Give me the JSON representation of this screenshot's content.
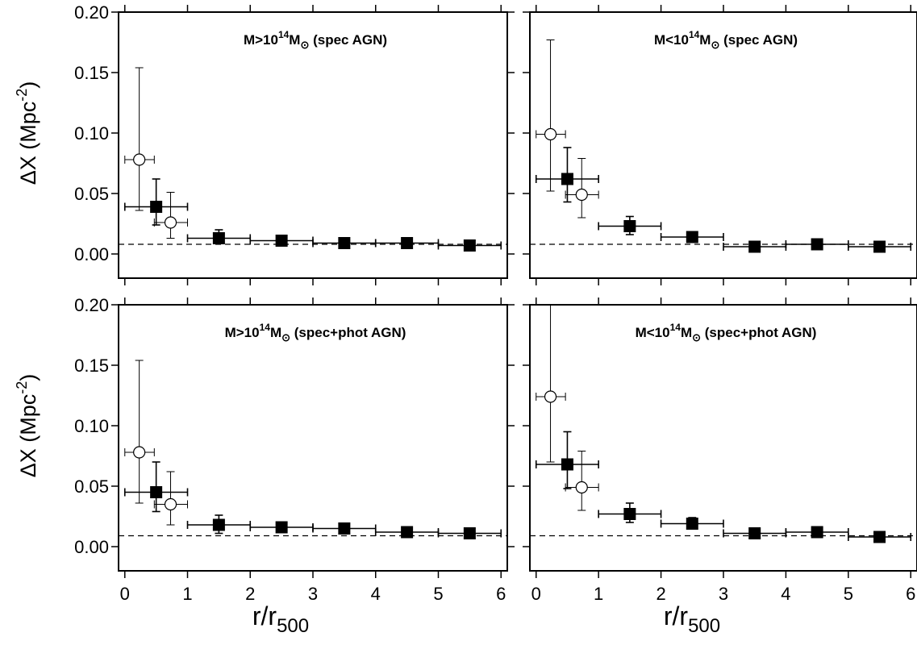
{
  "ylabel": "ΔX (Mpc",
  "ylabel_sup": "-2",
  "ylabel_end": ")",
  "xlabel": "r/r",
  "xlabel_sub": "500",
  "chart_data": [
    {
      "type": "scatter",
      "label": {
        "pre": "M>10",
        "sup": "14",
        "post": "M",
        "sym": "⊙",
        "tail": " (spec AGN)"
      },
      "xlim": [
        -0.1,
        6.1
      ],
      "ylim": [
        -0.02,
        0.2
      ],
      "xticks": [
        "0",
        "1",
        "2",
        "3",
        "4",
        "5",
        "6"
      ],
      "yticks": [
        "0.20",
        "0.15",
        "0.10",
        "0.05",
        "0.00"
      ],
      "reference_line": 0.008,
      "series": [
        {
          "marker": "filled-square",
          "points": [
            {
              "x": 0.5,
              "y": 0.039,
              "xerr": [
                0.0,
                1.0
              ],
              "yerr": [
                0.024,
                0.062
              ]
            },
            {
              "x": 1.5,
              "y": 0.013,
              "xerr": [
                1.0,
                2.0
              ],
              "yerr": [
                0.009,
                0.02
              ]
            },
            {
              "x": 2.5,
              "y": 0.011,
              "xerr": [
                2.0,
                3.0
              ],
              "yerr": [
                0.008,
                0.013
              ]
            },
            {
              "x": 3.5,
              "y": 0.009,
              "xerr": [
                3.0,
                4.0
              ],
              "yerr": [
                0.007,
                0.01
              ]
            },
            {
              "x": 4.5,
              "y": 0.009,
              "xerr": [
                4.0,
                5.0
              ],
              "yerr": [
                0.008,
                0.01
              ]
            },
            {
              "x": 5.5,
              "y": 0.007,
              "xerr": [
                5.0,
                6.0
              ],
              "yerr": [
                0.006,
                0.008
              ]
            }
          ]
        },
        {
          "marker": "open-circle",
          "points": [
            {
              "x": 0.23,
              "y": 0.078,
              "xerr": [
                0.0,
                0.47
              ],
              "yerr": [
                0.036,
                0.154
              ]
            },
            {
              "x": 0.73,
              "y": 0.026,
              "xerr": [
                0.47,
                1.0
              ],
              "yerr": [
                0.013,
                0.051
              ]
            }
          ]
        }
      ]
    },
    {
      "type": "scatter",
      "label": {
        "pre": "M<10",
        "sup": "14",
        "post": "M",
        "sym": "⊙",
        "tail": " (spec AGN)"
      },
      "xlim": [
        -0.1,
        6.1
      ],
      "ylim": [
        -0.02,
        0.2
      ],
      "xticks": [
        "0",
        "1",
        "2",
        "3",
        "4",
        "5",
        "6"
      ],
      "yticks": [
        "0.20",
        "0.15",
        "0.10",
        "0.05",
        "0.00"
      ],
      "reference_line": 0.008,
      "series": [
        {
          "marker": "filled-square",
          "points": [
            {
              "x": 0.5,
              "y": 0.062,
              "xerr": [
                0.0,
                1.0
              ],
              "yerr": [
                0.043,
                0.088
              ]
            },
            {
              "x": 1.5,
              "y": 0.023,
              "xerr": [
                1.0,
                2.0
              ],
              "yerr": [
                0.016,
                0.031
              ]
            },
            {
              "x": 2.5,
              "y": 0.014,
              "xerr": [
                2.0,
                3.0
              ],
              "yerr": [
                0.011,
                0.017
              ]
            },
            {
              "x": 3.5,
              "y": 0.006,
              "xerr": [
                3.0,
                4.0
              ],
              "yerr": [
                0.005,
                0.007
              ]
            },
            {
              "x": 4.5,
              "y": 0.008,
              "xerr": [
                4.0,
                5.0
              ],
              "yerr": [
                0.007,
                0.009
              ]
            },
            {
              "x": 5.5,
              "y": 0.006,
              "xerr": [
                5.0,
                6.0
              ],
              "yerr": [
                0.005,
                0.007
              ]
            }
          ]
        },
        {
          "marker": "open-circle",
          "points": [
            {
              "x": 0.23,
              "y": 0.099,
              "xerr": [
                0.0,
                0.47
              ],
              "yerr": [
                0.052,
                0.177
              ]
            },
            {
              "x": 0.73,
              "y": 0.049,
              "xerr": [
                0.47,
                1.0
              ],
              "yerr": [
                0.03,
                0.079
              ]
            }
          ]
        }
      ]
    },
    {
      "type": "scatter",
      "label": {
        "pre": "M>10",
        "sup": "14",
        "post": "M",
        "sym": "⊙",
        "tail": " (spec+phot AGN)"
      },
      "xlim": [
        -0.1,
        6.1
      ],
      "ylim": [
        -0.02,
        0.2
      ],
      "xticks": [
        "0",
        "1",
        "2",
        "3",
        "4",
        "5",
        "6"
      ],
      "yticks": [
        "0.20",
        "0.15",
        "0.10",
        "0.05",
        "0.00"
      ],
      "reference_line": 0.009,
      "series": [
        {
          "marker": "filled-square",
          "points": [
            {
              "x": 0.5,
              "y": 0.045,
              "xerr": [
                0.0,
                1.0
              ],
              "yerr": [
                0.029,
                0.07
              ]
            },
            {
              "x": 1.5,
              "y": 0.018,
              "xerr": [
                1.0,
                2.0
              ],
              "yerr": [
                0.011,
                0.026
              ]
            },
            {
              "x": 2.5,
              "y": 0.016,
              "xerr": [
                2.0,
                3.0
              ],
              "yerr": [
                0.012,
                0.02
              ]
            },
            {
              "x": 3.5,
              "y": 0.015,
              "xerr": [
                3.0,
                4.0
              ],
              "yerr": [
                0.012,
                0.018
              ]
            },
            {
              "x": 4.5,
              "y": 0.012,
              "xerr": [
                4.0,
                5.0
              ],
              "yerr": [
                0.01,
                0.014
              ]
            },
            {
              "x": 5.5,
              "y": 0.011,
              "xerr": [
                5.0,
                6.0
              ],
              "yerr": [
                0.009,
                0.013
              ]
            }
          ]
        },
        {
          "marker": "open-circle",
          "points": [
            {
              "x": 0.23,
              "y": 0.078,
              "xerr": [
                0.0,
                0.47
              ],
              "yerr": [
                0.036,
                0.154
              ]
            },
            {
              "x": 0.73,
              "y": 0.035,
              "xerr": [
                0.47,
                1.0
              ],
              "yerr": [
                0.018,
                0.062
              ]
            }
          ]
        }
      ]
    },
    {
      "type": "scatter",
      "label": {
        "pre": "M<10",
        "sup": "14",
        "post": "M",
        "sym": "⊙",
        "tail": " (spec+phot AGN)"
      },
      "xlim": [
        -0.1,
        6.1
      ],
      "ylim": [
        -0.02,
        0.2
      ],
      "xticks": [
        "0",
        "1",
        "2",
        "3",
        "4",
        "5",
        "6"
      ],
      "yticks": [
        "0.20",
        "0.15",
        "0.10",
        "0.05",
        "0.00"
      ],
      "reference_line": 0.009,
      "series": [
        {
          "marker": "filled-square",
          "points": [
            {
              "x": 0.5,
              "y": 0.068,
              "xerr": [
                0.0,
                1.0
              ],
              "yerr": [
                0.048,
                0.095
              ]
            },
            {
              "x": 1.5,
              "y": 0.027,
              "xerr": [
                1.0,
                2.0
              ],
              "yerr": [
                0.02,
                0.036
              ]
            },
            {
              "x": 2.5,
              "y": 0.019,
              "xerr": [
                2.0,
                3.0
              ],
              "yerr": [
                0.015,
                0.024
              ]
            },
            {
              "x": 3.5,
              "y": 0.011,
              "xerr": [
                3.0,
                4.0
              ],
              "yerr": [
                0.009,
                0.013
              ]
            },
            {
              "x": 4.5,
              "y": 0.012,
              "xerr": [
                4.0,
                5.0
              ],
              "yerr": [
                0.01,
                0.014
              ]
            },
            {
              "x": 5.5,
              "y": 0.008,
              "xerr": [
                5.0,
                6.0
              ],
              "yerr": [
                0.007,
                0.009
              ]
            }
          ]
        },
        {
          "marker": "open-circle",
          "points": [
            {
              "x": 0.23,
              "y": 0.124,
              "xerr": [
                0.0,
                0.47
              ],
              "yerr": [
                0.07,
                0.21
              ]
            },
            {
              "x": 0.73,
              "y": 0.049,
              "xerr": [
                0.47,
                1.0
              ],
              "yerr": [
                0.03,
                0.079
              ]
            }
          ]
        }
      ]
    }
  ]
}
